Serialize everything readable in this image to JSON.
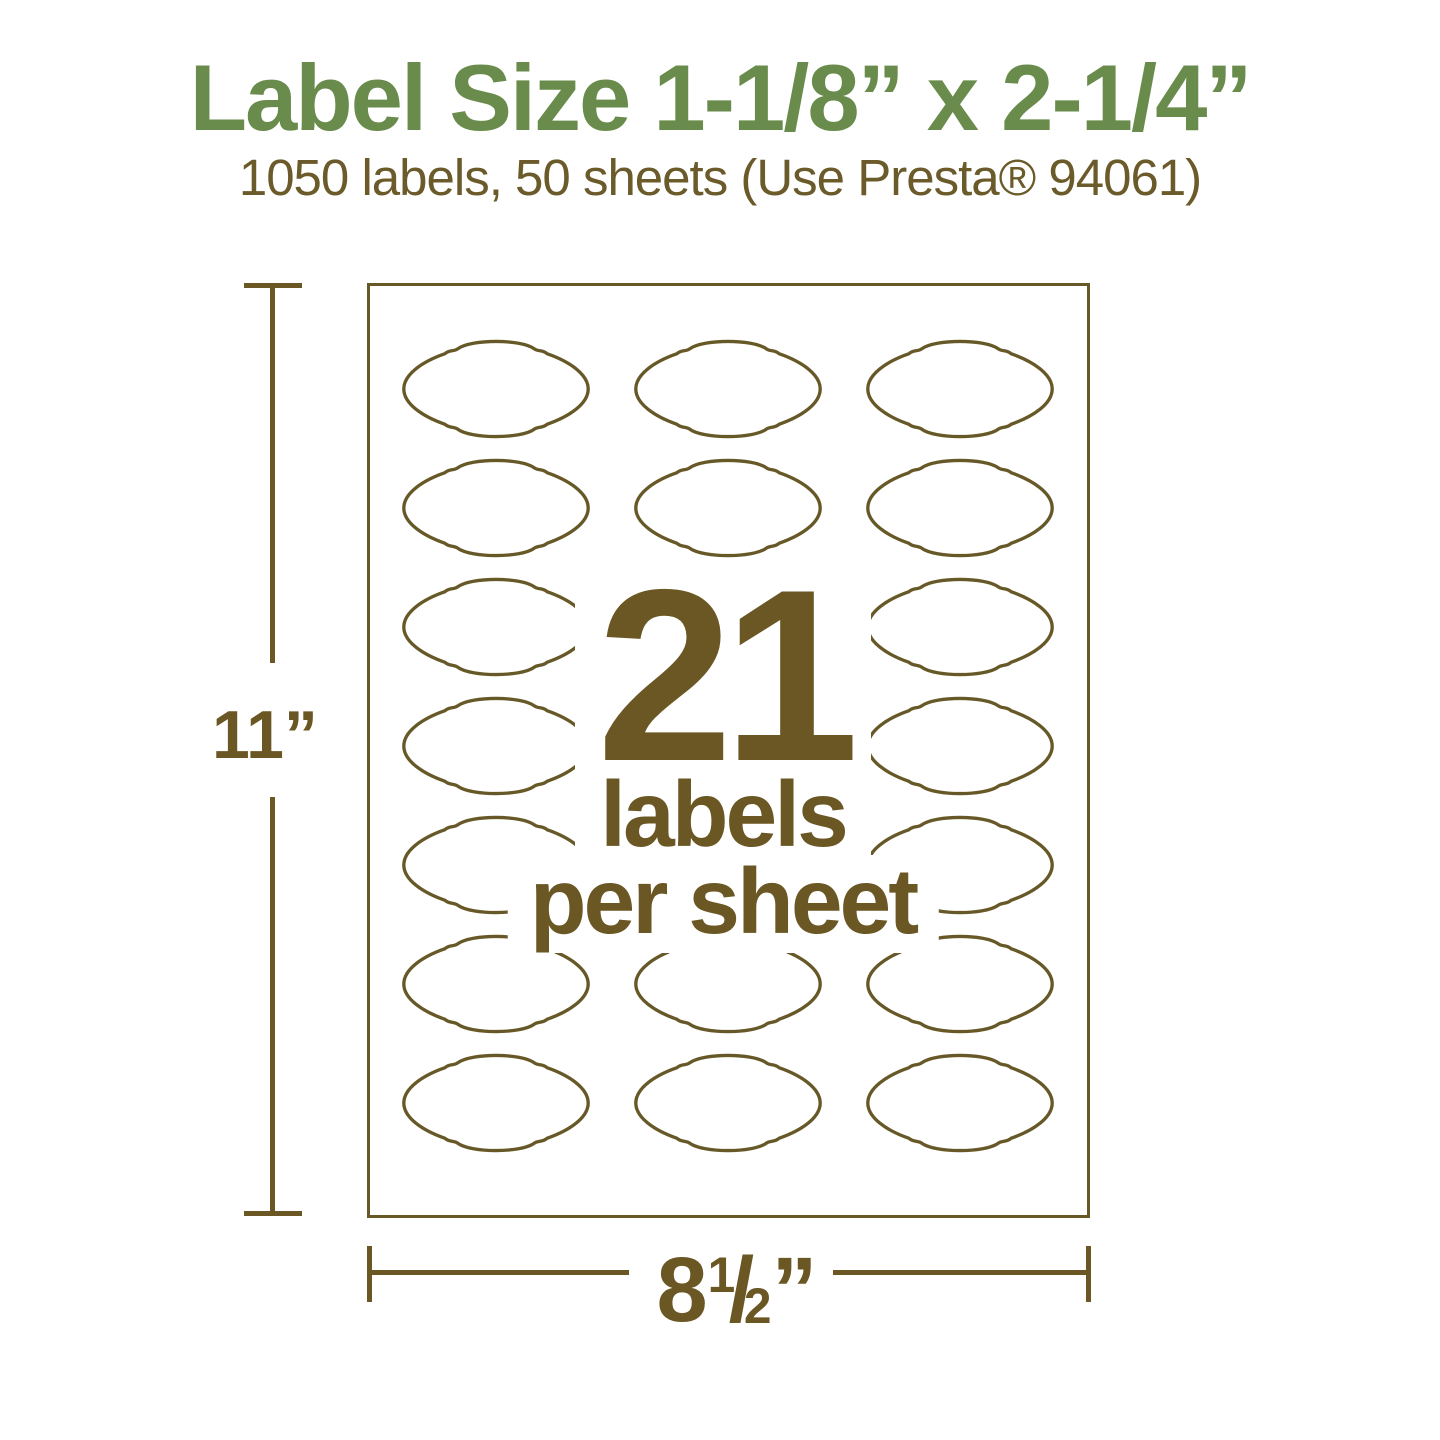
{
  "header": {
    "title": "Label Size 1-1/8” x 2-1/4”",
    "subtitle": "1050 labels, 50 sheets (Use Presta® 94061)"
  },
  "sheet": {
    "grid": {
      "rows": 7,
      "columns": 3,
      "total_labels": 21
    },
    "overlay": {
      "count": "21",
      "unit_line1": "labels",
      "unit_line2": "per sheet"
    }
  },
  "dimensions": {
    "height": {
      "value": "11”"
    },
    "width": {
      "whole": "8",
      "numerator": "1",
      "slash": "/",
      "denominator": "2",
      "unit": "”"
    }
  },
  "colors": {
    "title_green": "#698b4b",
    "text_brown": "#6b5724",
    "line_brown": "#675827",
    "background": "#ffffff"
  }
}
